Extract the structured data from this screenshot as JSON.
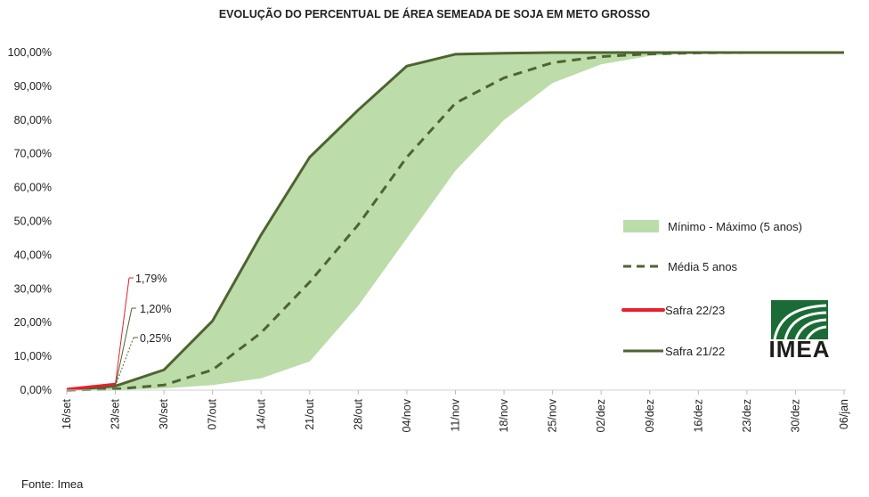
{
  "chart_data": {
    "type": "area",
    "title": "EVOLUÇÃO DO PERCENTUAL DE ÁREA SEMEADA DE SOJA EM METO GROSSO",
    "xlabel": "",
    "ylabel": "",
    "ylim": [
      0,
      100
    ],
    "yticks": [
      "0,00%",
      "10,00%",
      "20,00%",
      "30,00%",
      "40,00%",
      "50,00%",
      "60,00%",
      "70,00%",
      "80,00%",
      "90,00%",
      "100,00%"
    ],
    "categories": [
      "16/set",
      "23/set",
      "30/set",
      "07/out",
      "14/out",
      "21/out",
      "28/out",
      "04/nov",
      "11/nov",
      "18/nov",
      "25/nov",
      "02/dez",
      "09/dez",
      "16/dez",
      "23/dez",
      "30/dez",
      "06/jan"
    ],
    "band": {
      "name": "Mínimo - Máximo (5 anos)",
      "color": "#bcdcaa",
      "min": [
        0,
        0.1,
        0.5,
        1.5,
        3.5,
        8.5,
        25,
        45,
        65,
        80,
        91,
        96.5,
        99,
        99.9,
        100,
        100,
        100
      ],
      "max": [
        0.3,
        1.5,
        6,
        20.5,
        46,
        69,
        83,
        96,
        99.5,
        99.8,
        100,
        100,
        100,
        100,
        100,
        100,
        100
      ]
    },
    "series": [
      {
        "name": "Média 5 anos",
        "color": "#4e6430",
        "style": "dashed",
        "values": [
          0,
          0.3,
          1.5,
          6,
          17,
          32,
          49,
          69,
          85,
          92.5,
          97,
          98.8,
          99.6,
          99.9,
          100,
          100,
          100
        ]
      },
      {
        "name": "Safra 22/23",
        "color": "#e8202a",
        "style": "solid",
        "values": [
          0.25,
          1.79,
          null,
          null,
          null,
          null,
          null,
          null,
          null,
          null,
          null,
          null,
          null,
          null,
          null,
          null,
          null
        ]
      },
      {
        "name": "Safra 21/22",
        "color": "#4e6430",
        "style": "solid",
        "values": [
          0,
          1.2,
          6,
          20.5,
          46,
          69,
          83,
          96,
          99.5,
          99.8,
          100,
          100,
          100,
          100,
          100,
          100,
          100
        ]
      }
    ],
    "annotations": [
      {
        "text": "1,79%",
        "color": "#e8202a"
      },
      {
        "text": "1,20%",
        "color": "#4e6430"
      },
      {
        "text": "0,25%",
        "color": "#4e6430"
      }
    ],
    "legend_position": "right",
    "grid": false
  },
  "source": "Fonte: Imea",
  "logo": {
    "text": "IMEA",
    "color": "#1a6b35"
  }
}
